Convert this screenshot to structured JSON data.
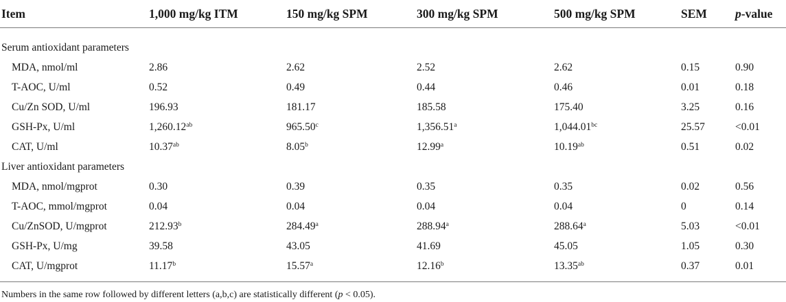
{
  "table": {
    "headers": [
      "Item",
      "1,000 mg/kg ITM",
      "150 mg/kg SPM",
      "300 mg/kg SPM",
      "500 mg/kg SPM",
      "SEM"
    ],
    "pvalue_header": {
      "italic": "p",
      "rest": "-value"
    },
    "sections": [
      {
        "title": "Serum antioxidant parameters",
        "rows": [
          {
            "label": "MDA, nmol/ml",
            "cells": [
              {
                "v": "2.86",
                "s": ""
              },
              {
                "v": "2.62",
                "s": ""
              },
              {
                "v": "2.52",
                "s": ""
              },
              {
                "v": "2.62",
                "s": ""
              }
            ],
            "sem": "0.15",
            "p": "0.90"
          },
          {
            "label": "T-AOC, U/ml",
            "cells": [
              {
                "v": "0.52",
                "s": ""
              },
              {
                "v": "0.49",
                "s": ""
              },
              {
                "v": "0.44",
                "s": ""
              },
              {
                "v": "0.46",
                "s": ""
              }
            ],
            "sem": "0.01",
            "p": "0.18"
          },
          {
            "label": "Cu/Zn SOD, U/ml",
            "cells": [
              {
                "v": "196.93",
                "s": ""
              },
              {
                "v": "181.17",
                "s": ""
              },
              {
                "v": "185.58",
                "s": ""
              },
              {
                "v": "175.40",
                "s": ""
              }
            ],
            "sem": "3.25",
            "p": "0.16"
          },
          {
            "label": "GSH-Px, U/ml",
            "cells": [
              {
                "v": "1,260.12",
                "s": "ab"
              },
              {
                "v": "965.50",
                "s": "c"
              },
              {
                "v": "1,356.51",
                "s": "a"
              },
              {
                "v": "1,044.01",
                "s": "bc"
              }
            ],
            "sem": "25.57",
            "p": "<0.01"
          },
          {
            "label": "CAT, U/ml",
            "cells": [
              {
                "v": "10.37",
                "s": "ab"
              },
              {
                "v": "8.05",
                "s": "b"
              },
              {
                "v": "12.99",
                "s": "a"
              },
              {
                "v": "10.19",
                "s": "ab"
              }
            ],
            "sem": "0.51",
            "p": "0.02"
          }
        ]
      },
      {
        "title": "Liver antioxidant parameters",
        "rows": [
          {
            "label": "MDA, nmol/mgprot",
            "cells": [
              {
                "v": "0.30",
                "s": ""
              },
              {
                "v": "0.39",
                "s": ""
              },
              {
                "v": "0.35",
                "s": ""
              },
              {
                "v": "0.35",
                "s": ""
              }
            ],
            "sem": "0.02",
            "p": "0.56"
          },
          {
            "label": "T-AOC, mmol/mgprot",
            "cells": [
              {
                "v": "0.04",
                "s": ""
              },
              {
                "v": "0.04",
                "s": ""
              },
              {
                "v": "0.04",
                "s": ""
              },
              {
                "v": "0.04",
                "s": ""
              }
            ],
            "sem": "0",
            "p": "0.14"
          },
          {
            "label": "Cu/ZnSOD, U/mgprot",
            "cells": [
              {
                "v": "212.93",
                "s": "b"
              },
              {
                "v": "284.49",
                "s": "a"
              },
              {
                "v": "288.94",
                "s": "a"
              },
              {
                "v": "288.64",
                "s": "a"
              }
            ],
            "sem": "5.03",
            "p": "<0.01"
          },
          {
            "label": "GSH-Px, U/mg",
            "cells": [
              {
                "v": "39.58",
                "s": ""
              },
              {
                "v": "43.05",
                "s": ""
              },
              {
                "v": "41.69",
                "s": ""
              },
              {
                "v": "45.05",
                "s": ""
              }
            ],
            "sem": "1.05",
            "p": "0.30"
          },
          {
            "label": "CAT, U/mgprot",
            "cells": [
              {
                "v": "11.17",
                "s": "b"
              },
              {
                "v": "15.57",
                "s": "a"
              },
              {
                "v": "12.16",
                "s": "b"
              },
              {
                "v": "13.35",
                "s": "ab"
              }
            ],
            "sem": "0.37",
            "p": "0.01"
          }
        ]
      }
    ]
  },
  "footnote": {
    "before": "Numbers in the same row followed by different letters (a,b,c) are statistically different (",
    "italic": "p",
    "after": " < 0.05)."
  }
}
